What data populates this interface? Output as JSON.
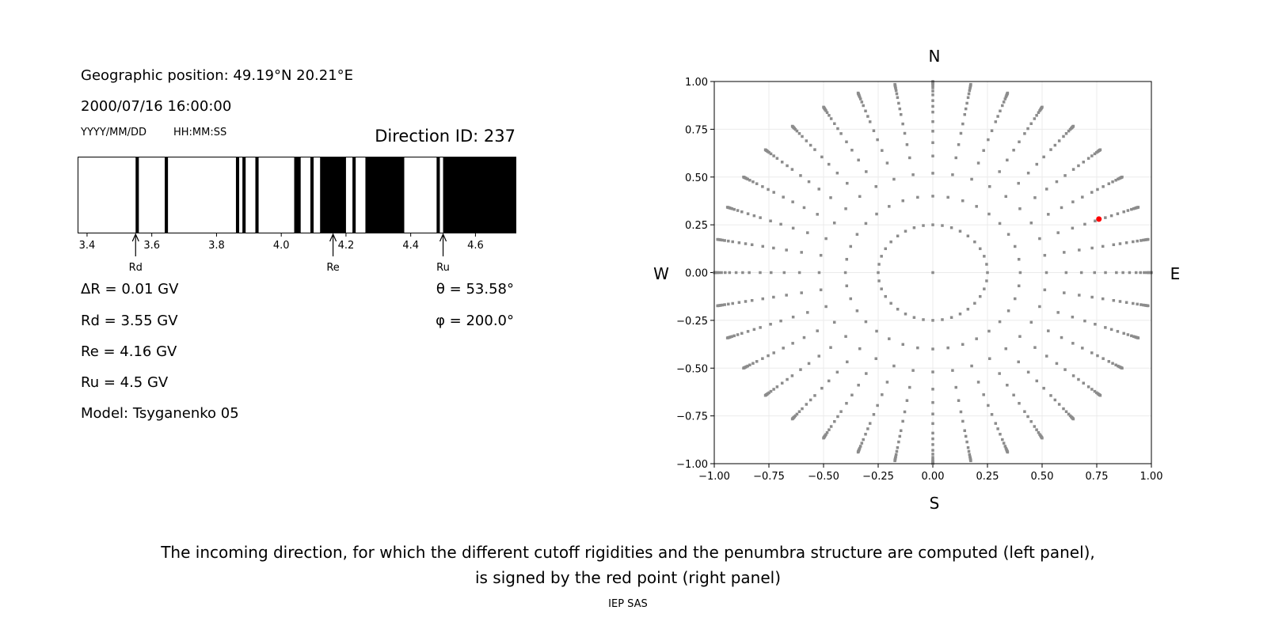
{
  "left_panel": {
    "geo_position": "Geographic position: 49.19°N 20.21°E",
    "datetime": "2000/07/16 16:00:00",
    "date_format": "YYYY/MM/DD",
    "time_format": "HH:MM:SS",
    "direction_id": "Direction ID: 237",
    "delta_r": "ΔR = 0.01 GV",
    "rd": "Rd = 3.55 GV",
    "re": "Re = 4.16 GV",
    "ru": "Ru = 4.5 GV",
    "model": "Model: Tsyganenko 05",
    "theta": "θ = 53.58°",
    "phi": "φ = 200.0°"
  },
  "caption": {
    "line1": "The incoming direction, for which the different cutoff rigidities and the penumbra structure are computed (left panel),",
    "line2": "is signed by the red point (right panel)",
    "footer": "IEP SAS"
  },
  "chart_data": [
    {
      "type": "bar",
      "description_kind": "penumbra",
      "xlim": [
        3.372,
        4.725
      ],
      "xticks": [
        3.4,
        3.6,
        3.8,
        4.0,
        4.2,
        4.4,
        4.6
      ],
      "xtick_labels": [
        "3.4",
        "3.6",
        "3.8",
        "4.0",
        "4.2",
        "4.4",
        "4.6"
      ],
      "forbidden_intervals_GV": [
        [
          3.55,
          3.56
        ],
        [
          3.64,
          3.65
        ],
        [
          3.86,
          3.87
        ],
        [
          3.88,
          3.89
        ],
        [
          3.92,
          3.93
        ],
        [
          4.04,
          4.06
        ],
        [
          4.09,
          4.1
        ],
        [
          4.12,
          4.2
        ],
        [
          4.22,
          4.23
        ],
        [
          4.26,
          4.38
        ],
        [
          4.48,
          4.49
        ],
        [
          4.5,
          4.725
        ]
      ],
      "colors": {
        "forbidden": "#000000",
        "allowed": "#ffffff"
      },
      "markers": [
        {
          "label": "Rd",
          "value": 3.55
        },
        {
          "label": "Re",
          "value": 4.16
        },
        {
          "label": "Ru",
          "value": 4.5
        }
      ]
    },
    {
      "type": "scatter",
      "xlim": [
        -1,
        1
      ],
      "ylim": [
        -1,
        1
      ],
      "xticks": [
        -1,
        -0.75,
        -0.5,
        -0.25,
        0,
        0.25,
        0.5,
        0.75,
        1
      ],
      "xtick_labels": [
        "−1.00",
        "−0.75",
        "−0.50",
        "−0.25",
        "0.00",
        "0.25",
        "0.50",
        "0.75",
        "1.00"
      ],
      "ytick_labels": [
        "−1.00",
        "−0.75",
        "−0.50",
        "−0.25",
        "0.00",
        "0.25",
        "0.50",
        "0.75",
        "1.00"
      ],
      "grid": true,
      "direction_labels": {
        "top": "N",
        "bottom": "S",
        "left": "W",
        "right": "E"
      },
      "grid_points": {
        "center": [
          0,
          0
        ],
        "inner_ring_radius": 0.25,
        "spoke_radii": [
          0.4,
          0.52,
          0.61,
          0.68,
          0.74,
          0.79,
          0.84,
          0.87,
          0.9,
          0.93,
          0.95,
          0.967,
          0.978,
          0.985,
          0.99,
          0.994,
          0.997,
          1.0
        ],
        "azimuth_step_deg": 10,
        "color": "#8c8c8c"
      },
      "highlight_point": {
        "x": 0.76,
        "y": 0.28,
        "color": "#ff0000"
      }
    }
  ]
}
